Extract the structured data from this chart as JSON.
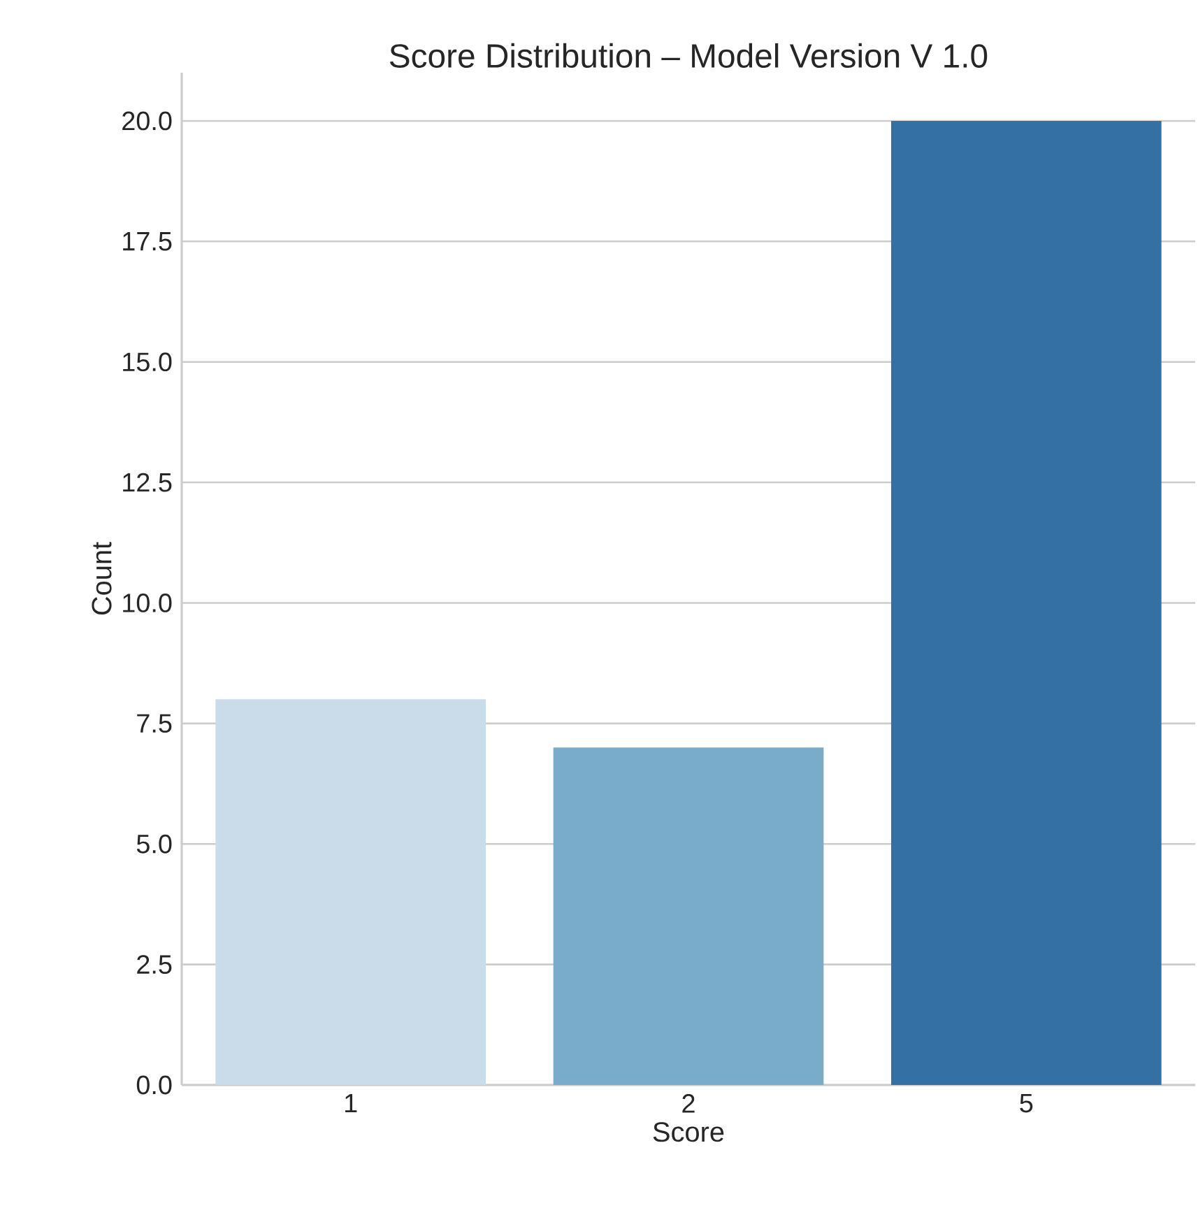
{
  "chart_data": {
    "type": "bar",
    "title": "Score Distribution – Model Version V 1.0",
    "xlabel": "Score",
    "ylabel": "Count",
    "categories": [
      "1",
      "2",
      "5"
    ],
    "values": [
      8,
      7,
      20
    ],
    "colors": [
      "#cadbea",
      "#79abca",
      "#3470a3"
    ],
    "ylim": [
      0,
      21
    ],
    "yticks": [
      {
        "value": 0,
        "label": "0.0"
      },
      {
        "value": 2.5,
        "label": "2.5"
      },
      {
        "value": 5,
        "label": "5.0"
      },
      {
        "value": 7.5,
        "label": "7.5"
      },
      {
        "value": 10,
        "label": "10.0"
      },
      {
        "value": 12.5,
        "label": "12.5"
      },
      {
        "value": 15,
        "label": "15.0"
      },
      {
        "value": 17.5,
        "label": "17.5"
      },
      {
        "value": 20,
        "label": "20.0"
      }
    ],
    "grid": "y"
  }
}
